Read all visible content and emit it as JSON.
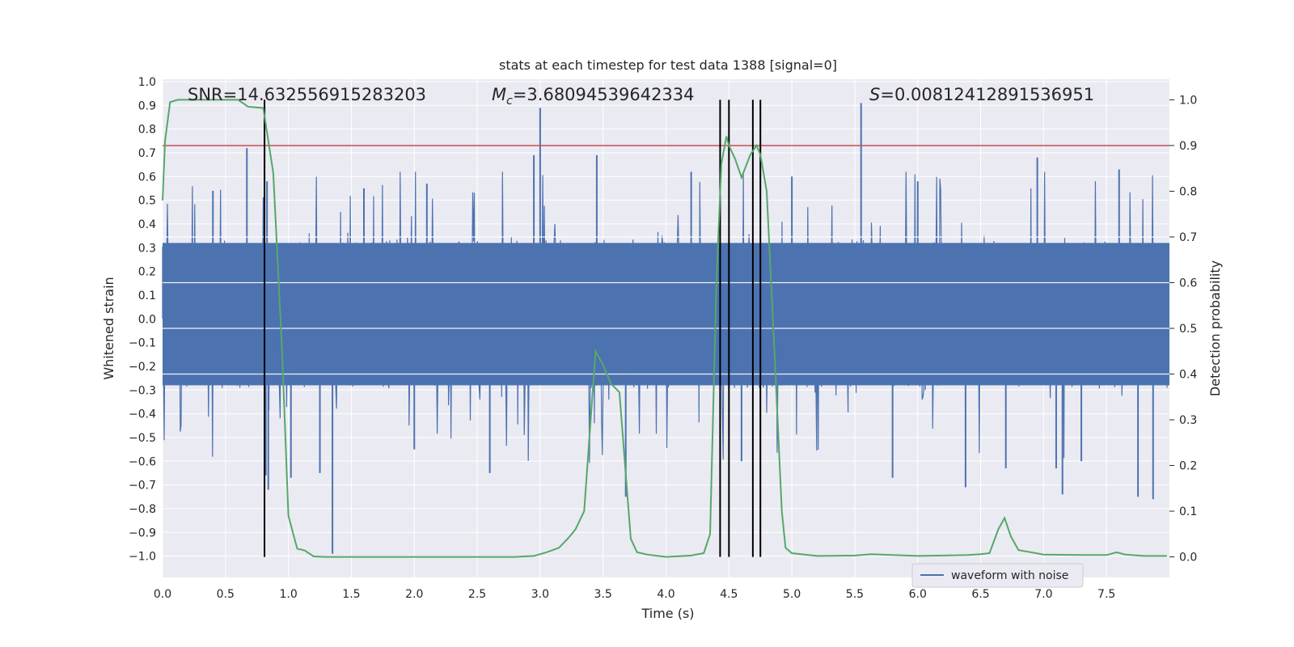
{
  "chart_data": {
    "type": "line",
    "title": "stats at each timestep for test data 1388 [signal=0]",
    "xlabel": "Time (s)",
    "ylabel": "Whitened strain",
    "y2label": "Detection probability",
    "xlim": [
      0.0,
      8.0
    ],
    "ylim": [
      -1.09,
      1.01
    ],
    "y2lim": [
      -0.045,
      1.045
    ],
    "xticks": [
      0.0,
      0.5,
      1.0,
      1.5,
      2.0,
      2.5,
      3.0,
      3.5,
      4.0,
      4.5,
      5.0,
      5.5,
      6.0,
      6.5,
      7.0,
      7.5
    ],
    "yticks": [
      -1.0,
      -0.9,
      -0.8,
      -0.7,
      -0.6,
      -0.5,
      -0.4,
      -0.3,
      -0.2,
      -0.1,
      0.0,
      0.1,
      0.2,
      0.3,
      0.4,
      0.5,
      0.6,
      0.7,
      0.8,
      0.9,
      1.0
    ],
    "y2ticks": [
      0.0,
      0.1,
      0.2,
      0.3,
      0.4,
      0.5,
      0.6,
      0.7,
      0.8,
      0.9,
      1.0
    ],
    "grid": true,
    "legend": {
      "entries": [
        "waveform with noise"
      ],
      "location": "lower-right"
    },
    "annotations": {
      "snr": "SNR=14.632556915283203",
      "mc_symbol": "M",
      "mc_sub": "c",
      "mc_value": "=3.68094539642334",
      "s_symbol": "S",
      "s_value": "=0.00812412891536951"
    },
    "threshold": {
      "value": 0.9,
      "axis": "y2",
      "color": "#c44e52"
    },
    "vlines": [
      0.81,
      4.43,
      4.5,
      4.69,
      4.75
    ],
    "waveform": {
      "name": "waveform with noise",
      "color": "#4c72b0",
      "noise_band": [
        -0.28,
        0.32
      ],
      "spikes": [
        {
          "x": 0.81,
          "y": 0.89
        },
        {
          "x": 0.83,
          "y": 0.58
        },
        {
          "x": 0.82,
          "y": -0.66
        },
        {
          "x": 0.84,
          "y": -0.72
        },
        {
          "x": 0.67,
          "y": 0.72
        },
        {
          "x": 1.35,
          "y": -0.99
        },
        {
          "x": 3.0,
          "y": 0.89
        },
        {
          "x": 5.55,
          "y": 0.91
        },
        {
          "x": 7.87,
          "y": -0.76
        },
        {
          "x": 7.1,
          "y": -0.63
        },
        {
          "x": 7.15,
          "y": -0.74
        },
        {
          "x": 7.75,
          "y": -0.75
        },
        {
          "x": 5.8,
          "y": -0.67
        },
        {
          "x": 3.68,
          "y": -0.75
        },
        {
          "x": 2.6,
          "y": -0.65
        },
        {
          "x": 1.02,
          "y": -0.67
        },
        {
          "x": 2.95,
          "y": 0.69
        },
        {
          "x": 3.45,
          "y": 0.69
        },
        {
          "x": 6.95,
          "y": 0.68
        },
        {
          "x": 6.38,
          "y": -0.71
        },
        {
          "x": 0.4,
          "y": 0.54
        },
        {
          "x": 1.6,
          "y": 0.55
        },
        {
          "x": 2.1,
          "y": 0.57
        },
        {
          "x": 4.2,
          "y": 0.62
        },
        {
          "x": 5.0,
          "y": 0.6
        },
        {
          "x": 6.0,
          "y": 0.58
        },
        {
          "x": 7.6,
          "y": 0.63
        },
        {
          "x": 4.6,
          "y": -0.6
        },
        {
          "x": 6.7,
          "y": -0.63
        },
        {
          "x": 2.0,
          "y": -0.55
        },
        {
          "x": 1.25,
          "y": -0.65
        },
        {
          "x": 7.3,
          "y": -0.6
        }
      ]
    },
    "probability": {
      "name": "detection probability",
      "color": "#55a868",
      "x": [
        0.0,
        0.02,
        0.06,
        0.12,
        0.2,
        0.4,
        0.6,
        0.68,
        0.8,
        0.88,
        0.95,
        1.0,
        1.07,
        1.13,
        1.2,
        1.3,
        1.5,
        1.8,
        2.1,
        2.5,
        2.8,
        2.95,
        3.05,
        3.15,
        3.22,
        3.28,
        3.35,
        3.44,
        3.5,
        3.56,
        3.63,
        3.72,
        3.77,
        3.85,
        4.0,
        4.2,
        4.3,
        4.35,
        4.4,
        4.44,
        4.48,
        4.5,
        4.55,
        4.6,
        4.67,
        4.72,
        4.75,
        4.8,
        4.87,
        4.92,
        4.95,
        5.0,
        5.2,
        5.5,
        5.63,
        5.8,
        6.0,
        6.2,
        6.4,
        6.5,
        6.57,
        6.64,
        6.69,
        6.74,
        6.8,
        7.0,
        7.3,
        7.5,
        7.58,
        7.65,
        7.8,
        7.98
      ],
      "y": [
        0.78,
        0.91,
        0.995,
        1.0,
        1.0,
        1.0,
        1.0,
        0.985,
        0.982,
        0.84,
        0.45,
        0.09,
        0.018,
        0.014,
        0.001,
        0.0,
        0.0,
        0.0,
        0.0,
        0.0,
        0.0,
        0.002,
        0.01,
        0.02,
        0.04,
        0.06,
        0.1,
        0.45,
        0.42,
        0.38,
        0.36,
        0.04,
        0.01,
        0.005,
        0.0,
        0.003,
        0.008,
        0.05,
        0.6,
        0.86,
        0.92,
        0.9,
        0.87,
        0.83,
        0.88,
        0.9,
        0.88,
        0.8,
        0.4,
        0.1,
        0.02,
        0.008,
        0.002,
        0.003,
        0.006,
        0.004,
        0.002,
        0.003,
        0.004,
        0.006,
        0.008,
        0.06,
        0.085,
        0.045,
        0.015,
        0.005,
        0.004,
        0.004,
        0.01,
        0.005,
        0.002,
        0.002
      ]
    }
  }
}
